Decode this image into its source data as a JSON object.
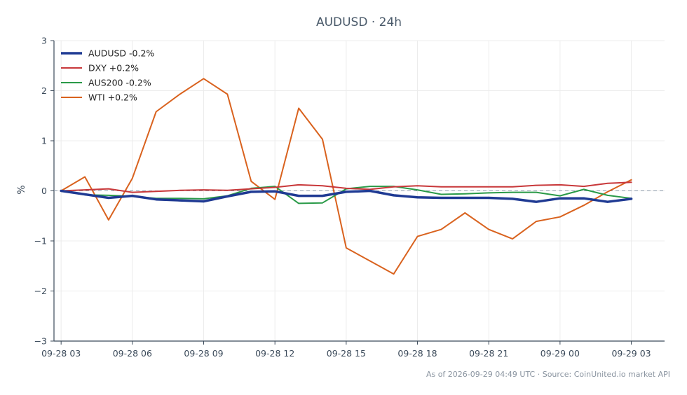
{
  "chart_data": {
    "type": "line",
    "title": "AUDUSD · 24h",
    "xlabel": "",
    "ylabel": "%",
    "ylim": [
      -3,
      3
    ],
    "xlim": [
      3.7,
      29.4
    ],
    "x_ticks": [
      {
        "pos": 4,
        "label": "09-28 03"
      },
      {
        "pos": 7,
        "label": "09-28 06"
      },
      {
        "pos": 10,
        "label": "09-28 09"
      },
      {
        "pos": 13,
        "label": "09-28 12"
      },
      {
        "pos": 16,
        "label": "09-28 15"
      },
      {
        "pos": 19,
        "label": "09-28 18"
      },
      {
        "pos": 22,
        "label": "09-28 21"
      },
      {
        "pos": 25,
        "label": "09-29 00"
      },
      {
        "pos": 28,
        "label": "09-29 03"
      }
    ],
    "y_ticks": [
      {
        "value": 3,
        "label": "3"
      },
      {
        "value": 2,
        "label": "2"
      },
      {
        "value": 1,
        "label": "1"
      },
      {
        "value": 0,
        "label": "0"
      },
      {
        "value": -1,
        "label": "−1"
      },
      {
        "value": -2,
        "label": "−2"
      },
      {
        "value": -3,
        "label": "−3"
      }
    ],
    "grid": true,
    "legend": "top-left",
    "x": [
      4.0,
      5.0,
      6.0,
      7.0,
      8.0,
      9.0,
      10.0,
      11.0,
      12.0,
      13.0,
      14.0,
      15.0,
      16.0,
      17.0,
      18.0,
      19.0,
      20.0,
      21.0,
      22.0,
      23.0,
      24.0,
      25.0,
      26.0,
      27.0,
      28.0,
      29.0
    ],
    "series": [
      {
        "name": "AUDUSD -0.2%",
        "color": "#1f3a93",
        "width": 3.5,
        "values": [
          0.0,
          -0.07,
          -0.14,
          -0.1,
          -0.17,
          -0.19,
          -0.21,
          -0.11,
          -0.02,
          -0.01,
          -0.1,
          -0.1,
          -0.02,
          0.0,
          -0.09,
          -0.13,
          -0.14,
          -0.14,
          -0.14,
          -0.16,
          -0.22,
          -0.15,
          -0.15,
          -0.22,
          -0.16,
          null
        ]
      },
      {
        "name": "DXY +0.2%",
        "color": "#c8383a",
        "width": 2,
        "values": [
          0.0,
          0.02,
          0.04,
          -0.03,
          -0.01,
          0.01,
          0.02,
          0.01,
          0.04,
          0.07,
          0.12,
          0.1,
          0.05,
          0.03,
          0.08,
          0.1,
          0.08,
          0.08,
          0.08,
          0.08,
          0.11,
          0.12,
          0.09,
          0.15,
          0.17,
          null
        ]
      },
      {
        "name": "AUS200 -0.2%",
        "color": "#2a9a48",
        "width": 2,
        "values": [
          0.0,
          -0.08,
          -0.09,
          -0.11,
          -0.15,
          -0.15,
          -0.16,
          -0.1,
          0.05,
          0.09,
          -0.25,
          -0.24,
          0.04,
          0.09,
          0.09,
          0.02,
          -0.07,
          -0.06,
          -0.04,
          -0.03,
          -0.03,
          -0.1,
          0.03,
          -0.09,
          -0.15,
          null
        ]
      },
      {
        "name": "WTI +0.2%",
        "color": "#d9621e",
        "width": 2,
        "values": [
          0.0,
          0.28,
          -0.58,
          0.25,
          1.58,
          1.93,
          2.24,
          1.93,
          0.19,
          -0.17,
          1.65,
          1.03,
          -1.14,
          -1.4,
          -1.66,
          -0.91,
          -0.77,
          -0.44,
          -0.77,
          -0.96,
          -0.61,
          -0.52,
          -0.29,
          -0.02,
          0.22,
          null
        ]
      }
    ],
    "baseline": 0
  },
  "footer": {
    "text": "As of 2026-09-29 04:49 UTC · Source: CoinUnited.io market API"
  }
}
